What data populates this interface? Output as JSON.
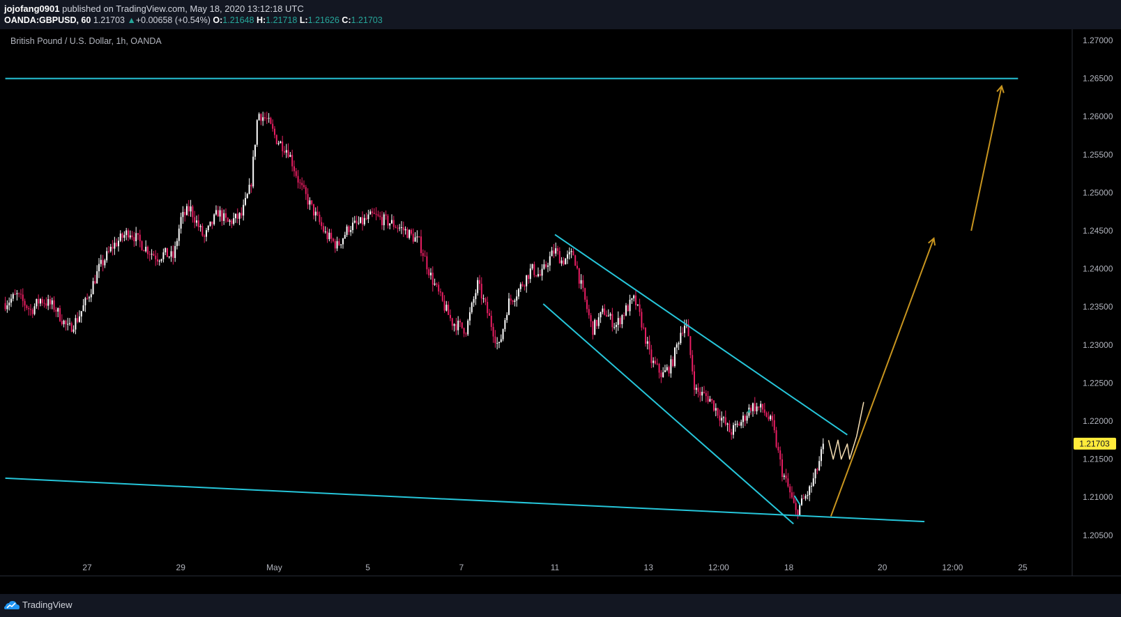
{
  "header": {
    "author": "jojofang0901",
    "published": "published on TradingView.com, May 18, 2020 13:12:18 UTC",
    "symbol": "OANDA:GBPUSD, 60",
    "price": "1.21703",
    "change": "+0.00658 (+0.54%)",
    "ohlc": [
      {
        "key": "O:",
        "value": "1.21648"
      },
      {
        "key": "H:",
        "value": "1.21718"
      },
      {
        "key": "L:",
        "value": "1.21626"
      },
      {
        "key": "C:",
        "value": "1.21703"
      }
    ]
  },
  "footer": {
    "brand": "TradingView"
  },
  "colors": {
    "background": "#000000",
    "bull": "#ffffff",
    "bear": "#e91e63",
    "trendline": "#26c6da",
    "projection": "#c8951f",
    "sketch": "#f5deb3",
    "price_tag": "#ffeb3b"
  },
  "chart_data": {
    "type": "candlestick",
    "title": "British Pound / U.S. Dollar, 1h, OANDA",
    "ylim": [
      1.2035,
      1.2735
    ],
    "y_ticks": [
      "1.27000",
      "1.26500",
      "1.26000",
      "1.25500",
      "1.25000",
      "1.24500",
      "1.24000",
      "1.23500",
      "1.23000",
      "1.22500",
      "1.22000",
      "1.21500",
      "1.21000",
      "1.20500"
    ],
    "x_ticks": [
      {
        "label": "27",
        "d": 0
      },
      {
        "label": "29",
        "d": 2
      },
      {
        "label": "May",
        "d": 4
      },
      {
        "label": "5",
        "d": 6
      },
      {
        "label": "7",
        "d": 8
      },
      {
        "label": "11",
        "d": 10
      },
      {
        "label": "13",
        "d": 12
      },
      {
        "label": "12:00",
        "d": 13.5
      },
      {
        "label": "18",
        "d": 15
      },
      {
        "label": "20",
        "d": 17
      },
      {
        "label": "12:00",
        "d": 18.5
      },
      {
        "label": "25",
        "d": 20
      }
    ],
    "last_price": 1.21703,
    "last_price_label": "1.21703",
    "price_path": [
      [
        -1.75,
        1.2355
      ],
      [
        -1.5,
        1.2365
      ],
      [
        -1.2,
        1.2345
      ],
      [
        -1.0,
        1.236
      ],
      [
        -0.7,
        1.235
      ],
      [
        -0.4,
        1.232
      ],
      [
        -0.2,
        1.2335
      ],
      [
        0.0,
        1.236
      ],
      [
        0.25,
        1.24
      ],
      [
        0.55,
        1.243
      ],
      [
        0.9,
        1.245
      ],
      [
        1.2,
        1.243
      ],
      [
        1.5,
        1.2415
      ],
      [
        1.65,
        1.242
      ],
      [
        1.85,
        1.2415
      ],
      [
        2.0,
        1.2465
      ],
      [
        2.2,
        1.248
      ],
      [
        2.5,
        1.244
      ],
      [
        2.8,
        1.2475
      ],
      [
        3.0,
        1.246
      ],
      [
        3.3,
        1.247
      ],
      [
        3.5,
        1.251
      ],
      [
        3.65,
        1.2605
      ],
      [
        3.85,
        1.2595
      ],
      [
        4.05,
        1.257
      ],
      [
        4.3,
        1.2555
      ],
      [
        4.55,
        1.251
      ],
      [
        4.8,
        1.248
      ],
      [
        5.1,
        1.2445
      ],
      [
        5.35,
        1.243
      ],
      [
        5.6,
        1.2455
      ],
      [
        5.85,
        1.246
      ],
      [
        6.1,
        1.247
      ],
      [
        6.3,
        1.2465
      ],
      [
        6.5,
        1.246
      ],
      [
        6.8,
        1.245
      ],
      [
        7.1,
        1.2435
      ],
      [
        7.35,
        1.239
      ],
      [
        7.6,
        1.2355
      ],
      [
        7.8,
        1.233
      ],
      [
        8.1,
        1.232
      ],
      [
        8.35,
        1.238
      ],
      [
        8.6,
        1.2335
      ],
      [
        8.8,
        1.2295
      ],
      [
        9.0,
        1.2355
      ],
      [
        9.2,
        1.237
      ],
      [
        9.5,
        1.24
      ],
      [
        9.7,
        1.239
      ],
      [
        9.85,
        1.241
      ],
      [
        10.0,
        1.2425
      ],
      [
        10.15,
        1.241
      ],
      [
        10.4,
        1.242
      ],
      [
        10.55,
        1.238
      ],
      [
        10.8,
        1.232
      ],
      [
        11.05,
        1.2345
      ],
      [
        11.3,
        1.2325
      ],
      [
        11.5,
        1.2345
      ],
      [
        11.7,
        1.236
      ],
      [
        11.85,
        1.233
      ],
      [
        12.05,
        1.228
      ],
      [
        12.3,
        1.226
      ],
      [
        12.5,
        1.2275
      ],
      [
        12.7,
        1.232
      ],
      [
        12.8,
        1.233
      ],
      [
        13.0,
        1.224
      ],
      [
        13.3,
        1.223
      ],
      [
        13.55,
        1.2205
      ],
      [
        13.75,
        1.2185
      ],
      [
        14.0,
        1.22
      ],
      [
        14.2,
        1.222
      ],
      [
        14.45,
        1.2215
      ],
      [
        14.65,
        1.2195
      ],
      [
        14.85,
        1.2135
      ],
      [
        15.0,
        1.211
      ],
      [
        15.15,
        1.208
      ],
      [
        15.3,
        1.2095
      ],
      [
        15.45,
        1.211
      ],
      [
        15.6,
        1.2135
      ],
      [
        15.75,
        1.21703
      ]
    ],
    "drawings": [
      {
        "name": "horizontal-resistance-line",
        "kind": "trendline",
        "from": [
          -1.75,
          1.265
        ],
        "to": [
          19.9,
          1.265
        ]
      },
      {
        "name": "lower-support-line",
        "kind": "trendline",
        "from": [
          -1.75,
          1.2125
        ],
        "to": [
          17.9,
          1.2068
        ]
      },
      {
        "name": "channel-upper-line",
        "kind": "trendline",
        "from": [
          10.0,
          1.2445
        ],
        "to": [
          16.25,
          1.2182
        ]
      },
      {
        "name": "channel-lower-line",
        "kind": "trendline",
        "from": [
          9.75,
          1.2354
        ],
        "to": [
          15.1,
          1.2065
        ]
      },
      {
        "name": "wedge-mark",
        "kind": "trendline",
        "from": [
          15.12,
          1.2102
        ],
        "to": [
          15.24,
          1.209
        ]
      },
      {
        "name": "projection-arrow-1",
        "kind": "arrow",
        "from": [
          15.9,
          1.2075
        ],
        "to": [
          18.1,
          1.244
        ]
      },
      {
        "name": "projection-arrow-2",
        "kind": "arrow",
        "from": [
          18.9,
          1.245
        ],
        "to": [
          19.55,
          1.264
        ]
      },
      {
        "name": "sketch-path",
        "kind": "sketch",
        "points": [
          [
            15.85,
            1.2175
          ],
          [
            15.95,
            1.215
          ],
          [
            16.05,
            1.2175
          ],
          [
            16.12,
            1.215
          ],
          [
            16.25,
            1.217
          ],
          [
            16.3,
            1.215
          ],
          [
            16.45,
            1.218
          ],
          [
            16.6,
            1.2225
          ]
        ]
      }
    ]
  }
}
